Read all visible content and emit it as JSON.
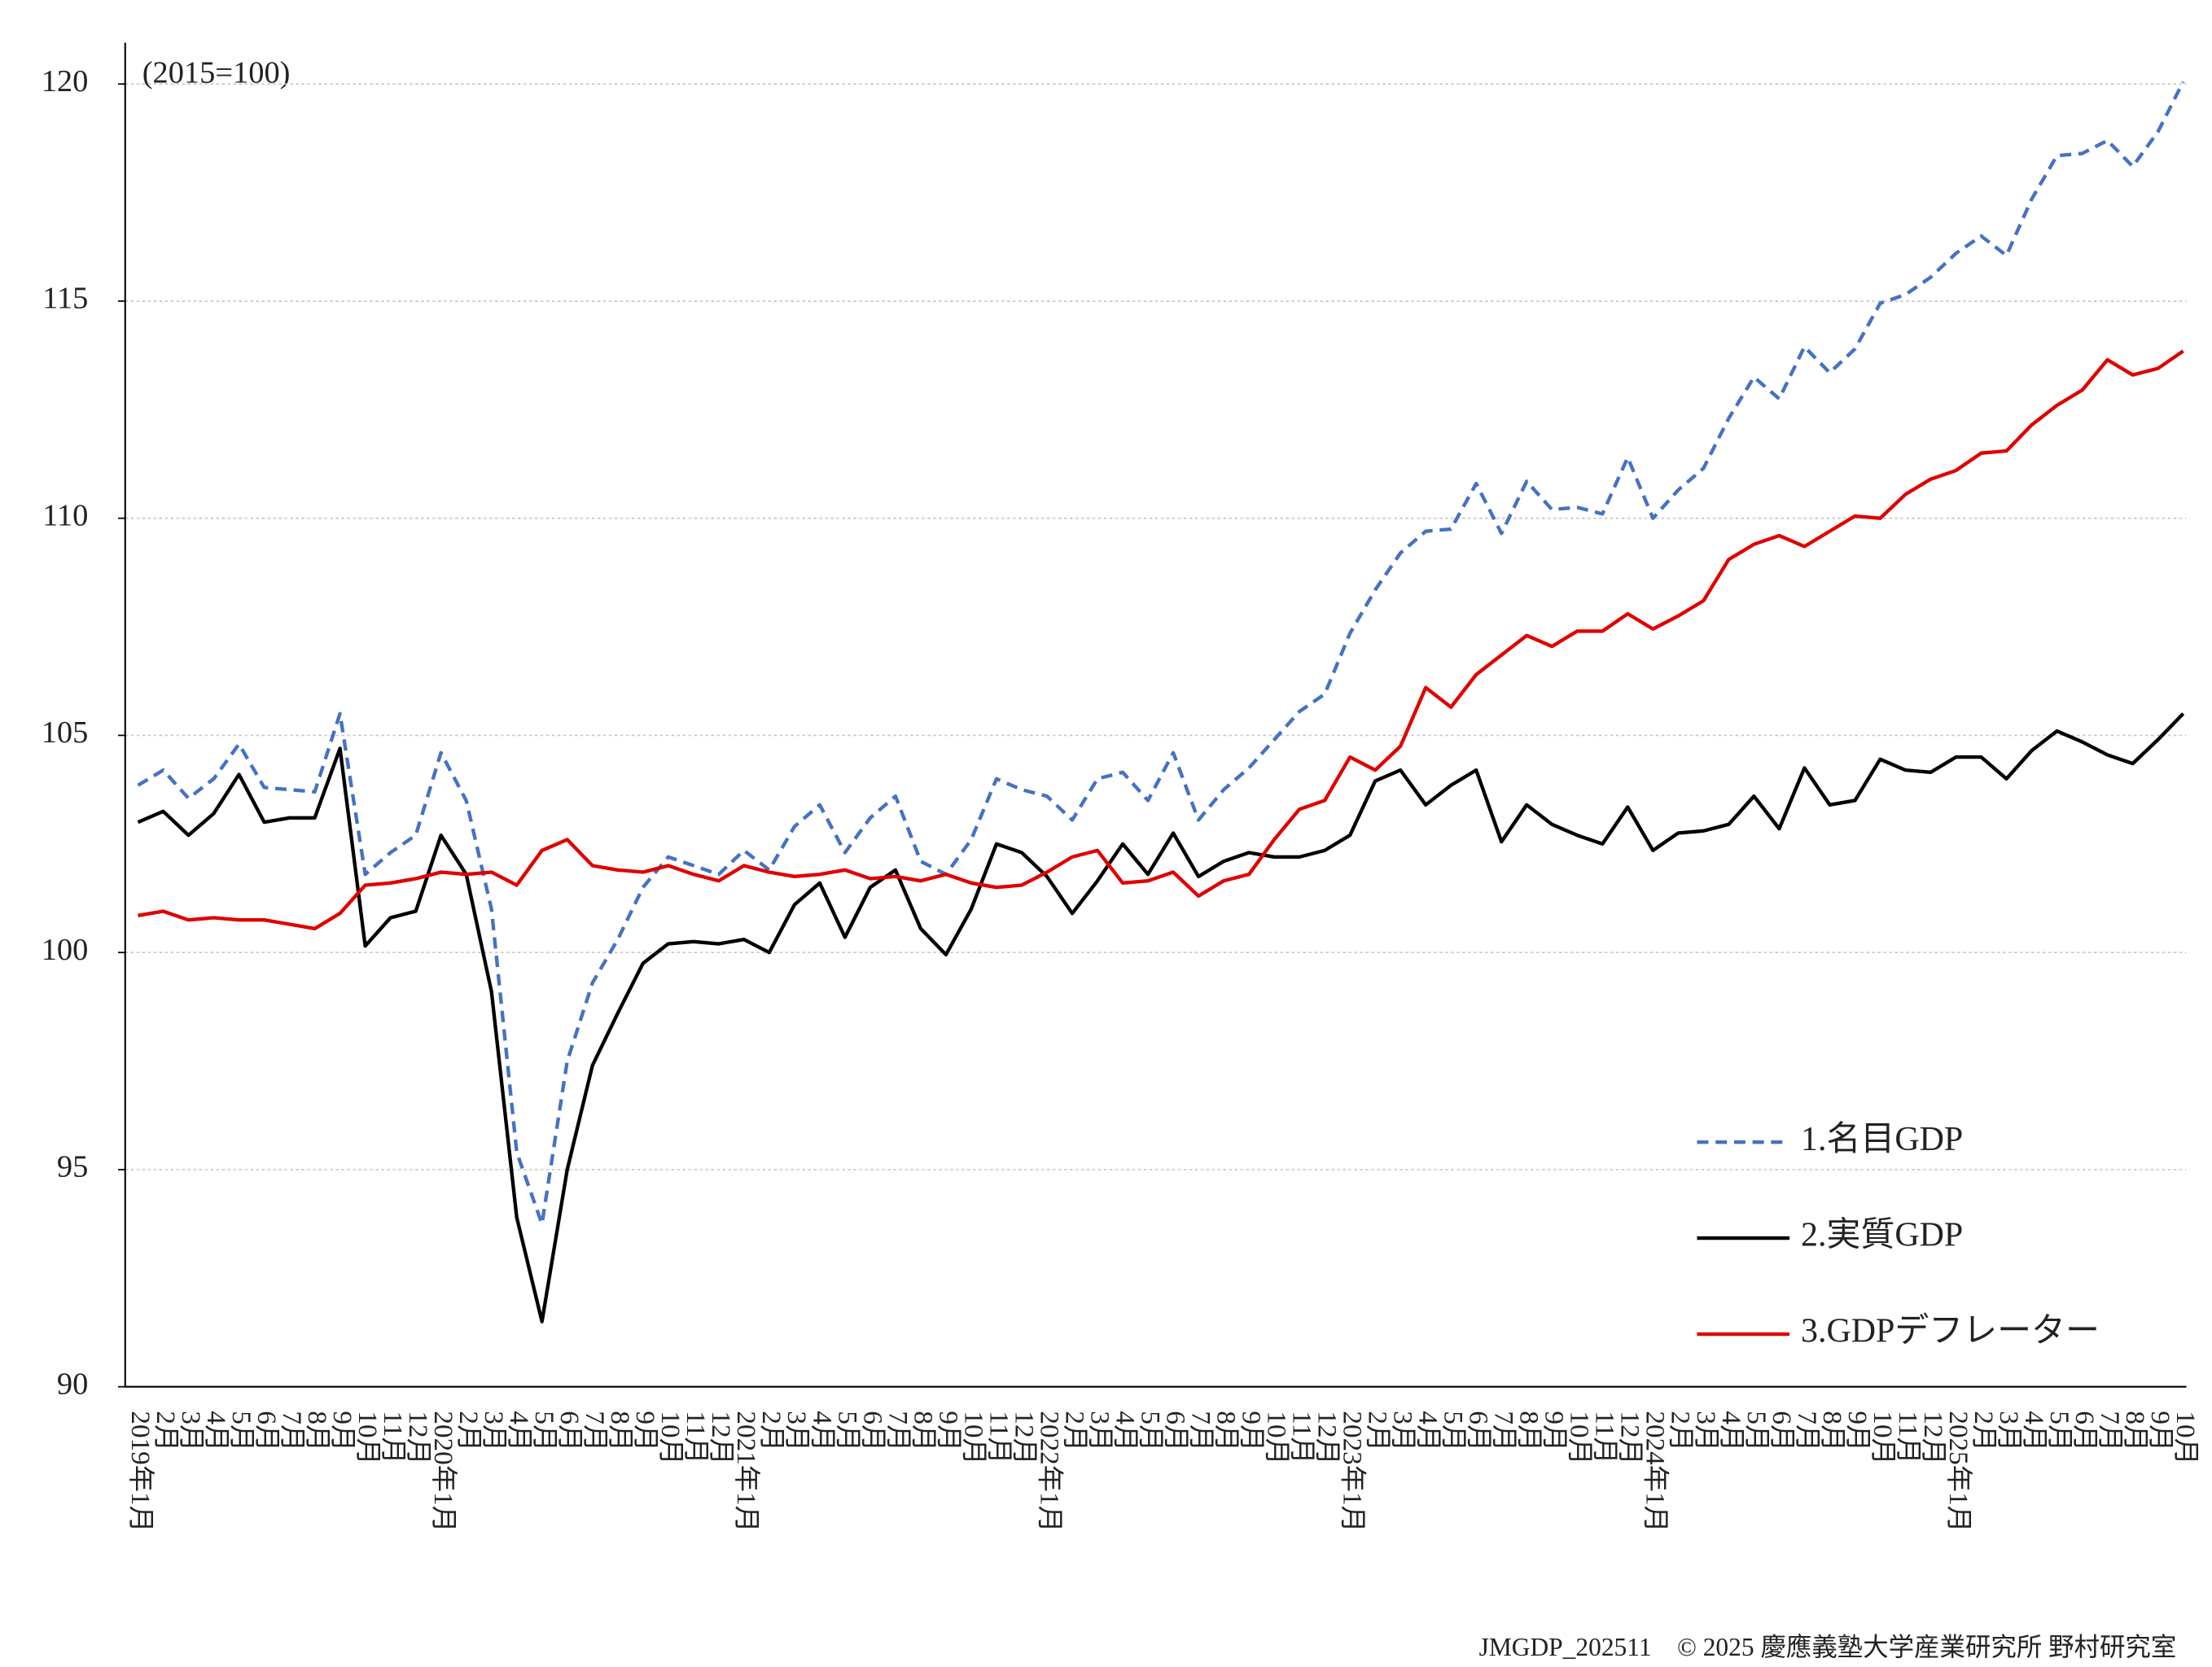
{
  "chart_data": {
    "type": "line",
    "annotation": "(2015=100)",
    "source": "JMGDP_202511　© 2025 慶應義塾大学産業研究所 野村研究室",
    "categories": [
      "2019年1月",
      "2月",
      "3月",
      "4月",
      "5月",
      "6月",
      "7月",
      "8月",
      "9月",
      "10月",
      "11月",
      "12月",
      "2020年1月",
      "2月",
      "3月",
      "4月",
      "5月",
      "6月",
      "7月",
      "8月",
      "9月",
      "10月",
      "11月",
      "12月",
      "2021年1月",
      "2月",
      "3月",
      "4月",
      "5月",
      "6月",
      "7月",
      "8月",
      "9月",
      "10月",
      "11月",
      "12月",
      "2022年1月",
      "2月",
      "3月",
      "4月",
      "5月",
      "6月",
      "7月",
      "8月",
      "9月",
      "10月",
      "11月",
      "12月",
      "2023年1月",
      "2月",
      "3月",
      "4月",
      "5月",
      "6月",
      "7月",
      "8月",
      "9月",
      "10月",
      "11月",
      "12月",
      "2024年1月",
      "2月",
      "3月",
      "4月",
      "5月",
      "6月",
      "7月",
      "8月",
      "9月",
      "10月",
      "11月",
      "12月",
      "2025年1月",
      "2月",
      "3月",
      "4月",
      "5月",
      "6月",
      "7月",
      "8月",
      "9月",
      "10月"
    ],
    "series": [
      {
        "name": "1.名目GDP",
        "color": "#4472c4",
        "dashed": true,
        "values": [
          103.85,
          104.2,
          103.55,
          104.0,
          104.8,
          103.8,
          103.75,
          103.7,
          105.5,
          101.8,
          102.3,
          102.7,
          104.6,
          103.5,
          101.0,
          95.4,
          93.75,
          97.5,
          99.3,
          100.3,
          101.5,
          102.2,
          102.0,
          101.8,
          102.35,
          101.9,
          102.9,
          103.4,
          102.3,
          103.1,
          103.6,
          102.1,
          101.8,
          102.6,
          104.0,
          103.75,
          103.6,
          103.05,
          104.0,
          104.15,
          103.5,
          104.6,
          103.05,
          103.75,
          104.25,
          104.9,
          105.55,
          105.95,
          107.35,
          108.35,
          109.2,
          109.7,
          109.75,
          110.8,
          109.65,
          110.85,
          110.2,
          110.25,
          110.1,
          111.4,
          110.0,
          110.65,
          111.15,
          112.3,
          113.25,
          112.75,
          113.95,
          113.35,
          113.9,
          114.95,
          115.15,
          115.55,
          116.1,
          116.5,
          116.05,
          117.35,
          118.35,
          118.4,
          118.7,
          118.1,
          118.9,
          120.05
        ]
      },
      {
        "name": "2.実質GDP",
        "color": "#000000",
        "dashed": false,
        "values": [
          103.0,
          103.25,
          102.7,
          103.2,
          104.1,
          103.0,
          103.1,
          103.1,
          104.7,
          100.15,
          100.8,
          100.95,
          102.7,
          101.8,
          99.1,
          93.9,
          91.5,
          95.0,
          97.4,
          98.6,
          99.75,
          100.2,
          100.25,
          100.2,
          100.3,
          100.0,
          101.1,
          101.6,
          100.35,
          101.5,
          101.9,
          100.55,
          99.95,
          101.0,
          102.5,
          102.3,
          101.75,
          100.9,
          101.65,
          102.5,
          101.8,
          102.75,
          101.75,
          102.1,
          102.3,
          102.2,
          102.2,
          102.35,
          102.7,
          103.95,
          104.2,
          103.4,
          103.85,
          104.2,
          102.55,
          103.4,
          102.95,
          102.7,
          102.5,
          103.35,
          102.35,
          102.75,
          102.8,
          102.95,
          103.6,
          102.85,
          104.25,
          103.4,
          103.5,
          104.45,
          104.2,
          104.15,
          104.5,
          104.5,
          104.0,
          104.65,
          105.1,
          104.85,
          104.55,
          104.35,
          104.9,
          105.5
        ]
      },
      {
        "name": "3.GDPデフレーター",
        "color": "#e00000",
        "dashed": false,
        "values": [
          100.85,
          100.95,
          100.75,
          100.8,
          100.75,
          100.75,
          100.65,
          100.55,
          100.9,
          101.55,
          101.6,
          101.7,
          101.85,
          101.8,
          101.85,
          101.55,
          102.35,
          102.6,
          102.0,
          101.9,
          101.85,
          102.0,
          101.8,
          101.65,
          102.0,
          101.85,
          101.75,
          101.8,
          101.9,
          101.7,
          101.75,
          101.65,
          101.8,
          101.6,
          101.5,
          101.55,
          101.85,
          102.2,
          102.35,
          101.6,
          101.65,
          101.85,
          101.3,
          101.65,
          101.8,
          102.6,
          103.3,
          103.5,
          104.5,
          104.2,
          104.75,
          106.1,
          105.65,
          106.4,
          106.85,
          107.3,
          107.05,
          107.4,
          107.4,
          107.8,
          107.45,
          107.75,
          108.1,
          109.05,
          109.4,
          109.6,
          109.35,
          109.7,
          110.05,
          110.0,
          110.55,
          110.9,
          111.1,
          111.5,
          111.55,
          112.15,
          112.6,
          112.95,
          113.65,
          113.3,
          113.45,
          113.85
        ]
      }
    ],
    "ylim": [
      90,
      120
    ],
    "yticks": [
      90,
      95,
      100,
      105,
      110,
      115,
      120
    ],
    "grid": true,
    "legend": "lower right"
  }
}
